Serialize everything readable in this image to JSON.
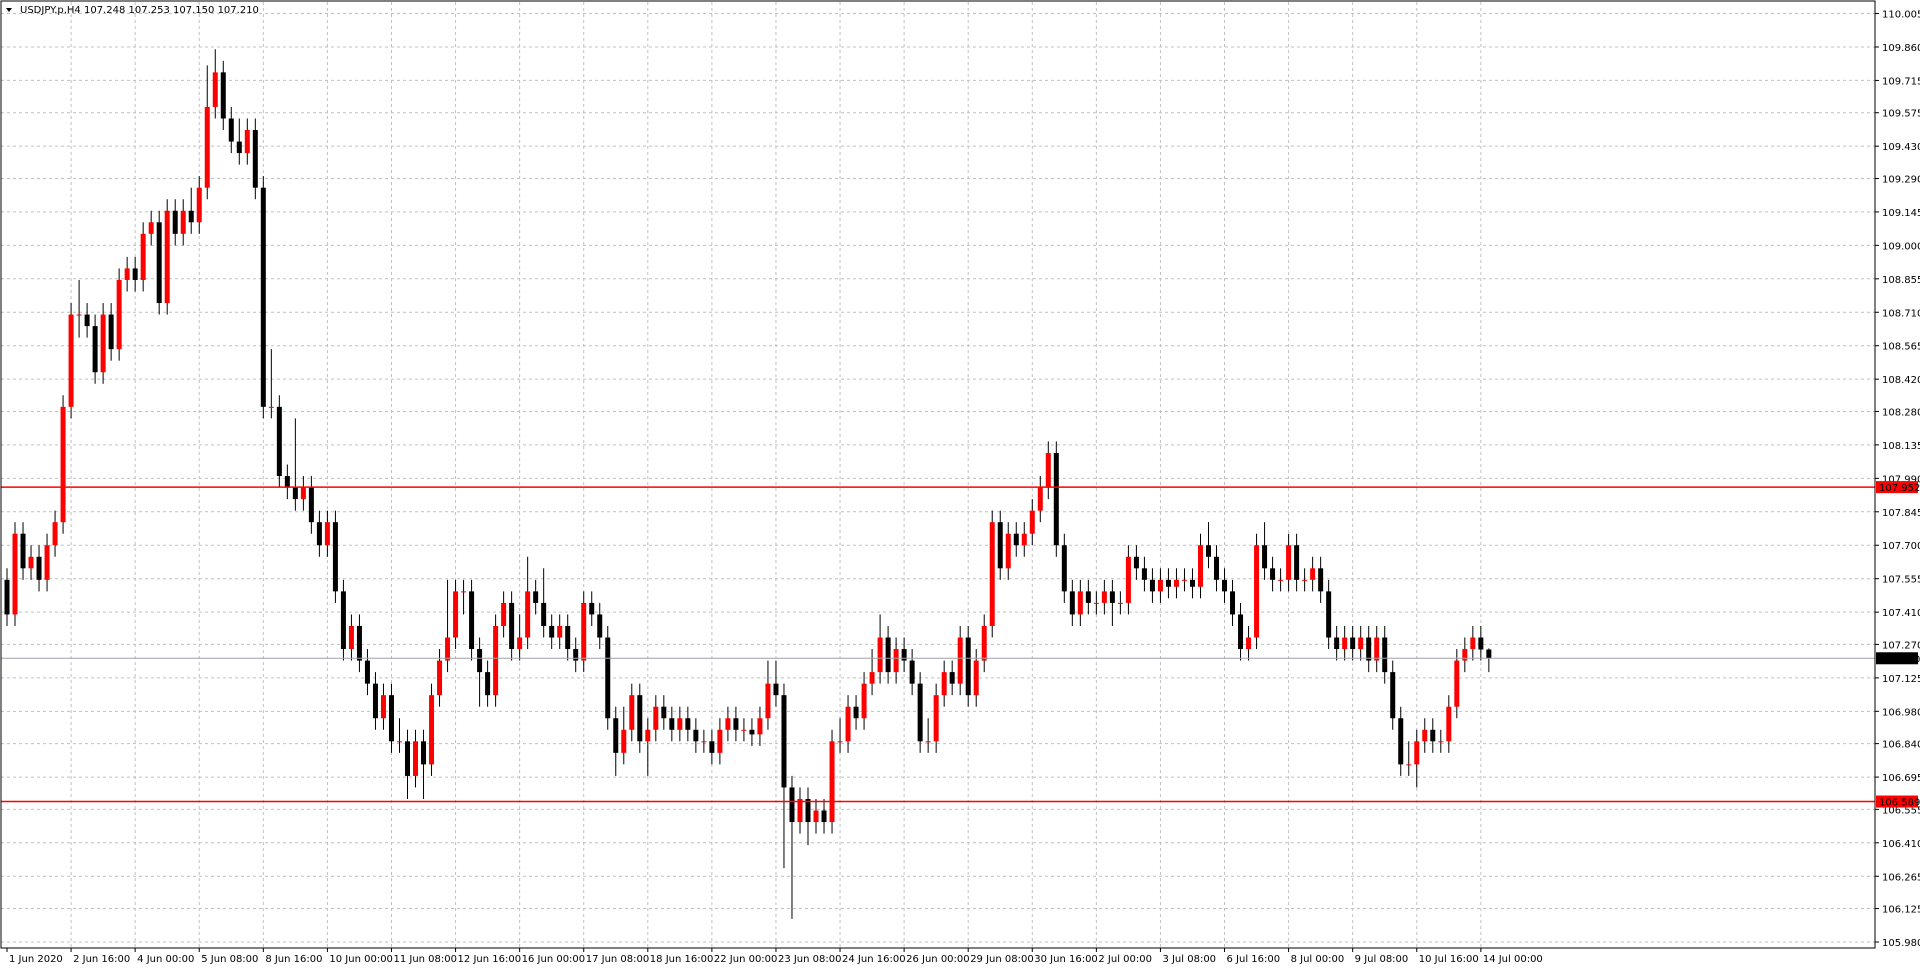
{
  "chart_data": {
    "type": "candlestick",
    "header": "USDJPY.p,H4  107.248 107.253 107.150 107.210",
    "categories": [
      "1 Jun 2020",
      null,
      null,
      null,
      null,
      null,
      null,
      null,
      "2 Jun 16:00",
      null,
      null,
      null,
      null,
      null,
      null,
      null,
      "4 Jun 00:00",
      null,
      null,
      null,
      null,
      null,
      null,
      null,
      "5 Jun 08:00",
      null,
      null,
      null,
      null,
      null,
      null,
      null,
      "8 Jun 16:00",
      null,
      null,
      null,
      null,
      null,
      null,
      null,
      "10 Jun 00:00",
      null,
      null,
      null,
      null,
      null,
      null,
      null,
      "11 Jun 08:00",
      null,
      null,
      null,
      null,
      null,
      null,
      null,
      "12 Jun 16:00",
      null,
      null,
      null,
      null,
      null,
      null,
      null,
      "16 Jun 00:00",
      null,
      null,
      null,
      null,
      null,
      null,
      null,
      "17 Jun 08:00",
      null,
      null,
      null,
      null,
      null,
      null,
      null,
      "18 Jun 16:00",
      null,
      null,
      null,
      null,
      null,
      null,
      null,
      "22 Jun 00:00",
      null,
      null,
      null,
      null,
      null,
      null,
      null,
      "23 Jun 08:00",
      null,
      null,
      null,
      null,
      null,
      null,
      null,
      "24 Jun 16:00",
      null,
      null,
      null,
      null,
      null,
      null,
      null,
      "26 Jun 00:00",
      null,
      null,
      null,
      null,
      null,
      null,
      null,
      "29 Jun 08:00",
      null,
      null,
      null,
      null,
      null,
      null,
      null,
      "30 Jun 16:00",
      null,
      null,
      null,
      null,
      null,
      null,
      null,
      "2 Jul 00:00",
      null,
      null,
      null,
      null,
      null,
      null,
      null,
      "3 Jul 08:00",
      null,
      null,
      null,
      null,
      null,
      null,
      null,
      "6 Jul 16:00",
      null,
      null,
      null,
      null,
      null,
      null,
      null,
      "8 Jul 00:00",
      null,
      null,
      null,
      null,
      null,
      null,
      null,
      "9 Jul 08:00",
      null,
      null,
      null,
      null,
      null,
      null,
      null,
      "10 Jul 16:00",
      null,
      null,
      null,
      null,
      null,
      null,
      null,
      "14 Jul 00:00",
      null
    ],
    "open": [
      107.55,
      107.4,
      107.75,
      107.6,
      107.65,
      107.55,
      107.7,
      107.8,
      108.3,
      108.7,
      108.7,
      108.65,
      108.45,
      108.7,
      108.55,
      108.85,
      108.9,
      108.85,
      109.05,
      109.1,
      108.75,
      109.15,
      109.05,
      109.15,
      109.1,
      109.25,
      109.6,
      109.75,
      109.55,
      109.45,
      109.4,
      109.5,
      109.25,
      108.3,
      108.3,
      108.0,
      107.95,
      107.9,
      107.95,
      107.8,
      107.7,
      107.8,
      107.5,
      107.25,
      107.35,
      107.2,
      107.1,
      106.95,
      107.05,
      106.85,
      106.85,
      106.7,
      106.85,
      106.75,
      107.05,
      107.2,
      107.3,
      107.5,
      107.5,
      107.25,
      107.15,
      107.05,
      107.35,
      107.45,
      107.25,
      107.3,
      107.5,
      107.45,
      107.35,
      107.3,
      107.35,
      107.25,
      107.2,
      107.45,
      107.4,
      107.3,
      106.95,
      106.8,
      106.9,
      107.05,
      106.85,
      106.9,
      107.0,
      106.95,
      106.9,
      106.95,
      106.9,
      106.85,
      106.85,
      106.8,
      106.9,
      106.95,
      106.9,
      106.9,
      106.88,
      106.95,
      107.1,
      107.05,
      106.65,
      106.5,
      106.6,
      106.5,
      106.55,
      106.5,
      106.85,
      106.85,
      107.0,
      106.95,
      107.1,
      107.15,
      107.3,
      107.15,
      107.25,
      107.2,
      107.1,
      106.85,
      106.85,
      107.05,
      107.15,
      107.1,
      107.3,
      107.05,
      107.2,
      107.35,
      107.8,
      107.6,
      107.75,
      107.7,
      107.75,
      107.85,
      107.95,
      108.1,
      107.7,
      107.5,
      107.4,
      107.5,
      107.45,
      107.45,
      107.5,
      107.45,
      107.45,
      107.65,
      107.6,
      107.55,
      107.5,
      107.55,
      107.52,
      107.55,
      107.55,
      107.52,
      107.7,
      107.65,
      107.55,
      107.5,
      107.4,
      107.25,
      107.3,
      107.7,
      107.6,
      107.55,
      107.55,
      107.7,
      107.55,
      107.55,
      107.6,
      107.5,
      107.3,
      107.25,
      107.3,
      107.25,
      107.3,
      107.2,
      107.3,
      107.15,
      106.95,
      106.75,
      106.75,
      106.85,
      106.9,
      106.85,
      106.85,
      107.0,
      107.2,
      107.25,
      107.3,
      107.248
    ],
    "high": [
      107.6,
      107.8,
      107.8,
      107.7,
      107.7,
      107.75,
      107.85,
      108.35,
      108.75,
      108.85,
      108.75,
      108.7,
      108.75,
      108.75,
      108.9,
      108.95,
      108.95,
      109.1,
      109.15,
      109.15,
      109.2,
      109.2,
      109.2,
      109.25,
      109.3,
      109.78,
      109.85,
      109.8,
      109.6,
      109.55,
      109.55,
      109.55,
      109.3,
      108.55,
      108.35,
      108.05,
      108.25,
      108.0,
      108.0,
      107.85,
      107.85,
      107.85,
      107.55,
      107.4,
      107.4,
      107.25,
      107.15,
      107.1,
      107.1,
      106.95,
      106.9,
      106.9,
      106.9,
      107.1,
      107.25,
      107.55,
      107.55,
      107.55,
      107.55,
      107.3,
      107.2,
      107.4,
      107.5,
      107.5,
      107.4,
      107.65,
      107.55,
      107.6,
      107.4,
      107.4,
      107.4,
      107.3,
      107.5,
      107.5,
      107.45,
      107.35,
      107.0,
      107.0,
      107.1,
      107.1,
      106.95,
      107.05,
      107.05,
      107.0,
      107.0,
      107.0,
      106.95,
      106.9,
      106.9,
      106.95,
      107.0,
      107.0,
      106.95,
      106.95,
      107.0,
      107.2,
      107.2,
      107.1,
      106.7,
      106.65,
      106.65,
      106.6,
      106.6,
      106.9,
      106.95,
      107.05,
      107.05,
      107.15,
      107.25,
      107.4,
      107.35,
      107.3,
      107.3,
      107.25,
      107.15,
      106.95,
      107.1,
      107.2,
      107.2,
      107.35,
      107.35,
      107.25,
      107.4,
      107.85,
      107.85,
      107.8,
      107.8,
      107.8,
      107.9,
      108.0,
      108.15,
      108.15,
      107.75,
      107.55,
      107.55,
      107.55,
      107.5,
      107.55,
      107.55,
      107.5,
      107.7,
      107.7,
      107.65,
      107.6,
      107.6,
      107.6,
      107.6,
      107.6,
      107.6,
      107.75,
      107.8,
      107.7,
      107.6,
      107.55,
      107.45,
      107.35,
      107.75,
      107.8,
      107.65,
      107.6,
      107.75,
      107.75,
      107.6,
      107.65,
      107.65,
      107.55,
      107.35,
      107.35,
      107.35,
      107.35,
      107.35,
      107.35,
      107.35,
      107.2,
      107.0,
      106.85,
      106.9,
      106.95,
      106.95,
      106.9,
      107.05,
      107.25,
      107.3,
      107.35,
      107.35,
      107.253
    ],
    "low": [
      107.35,
      107.35,
      107.55,
      107.55,
      107.5,
      107.5,
      107.65,
      107.75,
      108.25,
      108.6,
      108.6,
      108.4,
      108.4,
      108.5,
      108.5,
      108.8,
      108.8,
      108.8,
      109.0,
      108.7,
      108.7,
      109.0,
      109.0,
      109.05,
      109.05,
      109.2,
      109.55,
      109.5,
      109.4,
      109.35,
      109.35,
      109.2,
      108.25,
      108.25,
      107.95,
      107.9,
      107.85,
      107.85,
      107.75,
      107.65,
      107.65,
      107.45,
      107.2,
      107.2,
      107.15,
      107.05,
      106.9,
      106.9,
      106.8,
      106.8,
      106.6,
      106.65,
      106.6,
      106.7,
      107.0,
      107.15,
      107.25,
      107.4,
      107.2,
      107.0,
      107.0,
      107.0,
      107.3,
      107.2,
      107.2,
      107.25,
      107.4,
      107.3,
      107.25,
      107.25,
      107.2,
      107.15,
      107.15,
      107.35,
      107.25,
      106.9,
      106.7,
      106.75,
      106.85,
      106.8,
      106.7,
      106.85,
      106.9,
      106.85,
      106.85,
      106.85,
      106.8,
      106.8,
      106.75,
      106.75,
      106.85,
      106.85,
      106.85,
      106.83,
      106.83,
      106.9,
      107.0,
      106.3,
      106.08,
      106.45,
      106.4,
      106.45,
      106.45,
      106.45,
      106.8,
      106.8,
      106.9,
      106.9,
      107.05,
      107.1,
      107.1,
      107.1,
      107.15,
      107.05,
      106.8,
      106.8,
      106.8,
      107.0,
      107.05,
      107.05,
      107.0,
      107.0,
      107.15,
      107.3,
      107.55,
      107.55,
      107.65,
      107.65,
      107.7,
      107.8,
      107.9,
      107.65,
      107.45,
      107.35,
      107.35,
      107.4,
      107.4,
      107.4,
      107.35,
      107.4,
      107.4,
      107.55,
      107.5,
      107.45,
      107.45,
      107.47,
      107.47,
      107.5,
      107.47,
      107.47,
      107.6,
      107.5,
      107.45,
      107.35,
      107.2,
      107.2,
      107.25,
      107.55,
      107.5,
      107.5,
      107.5,
      107.5,
      107.5,
      107.5,
      107.45,
      107.25,
      107.2,
      107.2,
      107.2,
      107.2,
      107.15,
      107.15,
      107.1,
      106.9,
      106.7,
      106.7,
      106.65,
      106.8,
      106.8,
      106.8,
      106.8,
      106.95,
      107.15,
      107.2,
      107.2,
      107.15
    ],
    "close": [
      107.4,
      107.75,
      107.6,
      107.65,
      107.55,
      107.7,
      107.8,
      108.3,
      108.7,
      108.7,
      108.65,
      108.45,
      108.7,
      108.55,
      108.85,
      108.9,
      108.85,
      109.05,
      109.1,
      108.75,
      109.15,
      109.05,
      109.15,
      109.1,
      109.25,
      109.6,
      109.75,
      109.55,
      109.45,
      109.4,
      109.5,
      109.25,
      108.3,
      108.3,
      108.0,
      107.95,
      107.9,
      107.95,
      107.8,
      107.7,
      107.8,
      107.5,
      107.25,
      107.35,
      107.2,
      107.1,
      106.95,
      107.05,
      106.85,
      106.85,
      106.7,
      106.85,
      106.75,
      107.05,
      107.2,
      107.3,
      107.5,
      107.5,
      107.25,
      107.15,
      107.05,
      107.35,
      107.45,
      107.25,
      107.3,
      107.5,
      107.45,
      107.35,
      107.3,
      107.35,
      107.25,
      107.2,
      107.45,
      107.4,
      107.3,
      106.95,
      106.8,
      106.9,
      107.05,
      106.85,
      106.9,
      107.0,
      106.95,
      106.9,
      106.95,
      106.9,
      106.85,
      106.85,
      106.8,
      106.9,
      106.95,
      106.9,
      106.9,
      106.88,
      106.95,
      107.1,
      107.05,
      106.65,
      106.5,
      106.6,
      106.5,
      106.55,
      106.5,
      106.85,
      106.85,
      107.0,
      106.95,
      107.1,
      107.15,
      107.3,
      107.15,
      107.25,
      107.2,
      107.1,
      106.85,
      106.85,
      107.05,
      107.15,
      107.1,
      107.3,
      107.05,
      107.2,
      107.35,
      107.8,
      107.6,
      107.75,
      107.7,
      107.75,
      107.85,
      107.95,
      108.1,
      107.7,
      107.5,
      107.4,
      107.5,
      107.45,
      107.45,
      107.5,
      107.45,
      107.45,
      107.65,
      107.6,
      107.55,
      107.5,
      107.55,
      107.52,
      107.55,
      107.55,
      107.52,
      107.7,
      107.65,
      107.55,
      107.5,
      107.4,
      107.25,
      107.3,
      107.7,
      107.6,
      107.55,
      107.55,
      107.7,
      107.55,
      107.55,
      107.6,
      107.5,
      107.3,
      107.25,
      107.3,
      107.25,
      107.3,
      107.2,
      107.3,
      107.15,
      106.95,
      106.75,
      106.75,
      106.85,
      106.9,
      106.85,
      106.85,
      107.0,
      107.2,
      107.25,
      107.3,
      107.248,
      107.21
    ],
    "up_color": "#ff0000",
    "down_color": "#000000",
    "ylim": [
      105.954,
      110.055
    ],
    "yticks": [
      110.005,
      {
        "value": 109.86,
        "label": "109.860"
      },
      109.715,
      109.575,
      {
        "value": 109.43,
        "label": "109.430"
      },
      {
        "value": 109.29,
        "label": "109.290"
      },
      109.145,
      {
        "value": 109.0,
        "label": "109.000"
      },
      108.855,
      {
        "value": 108.71,
        "label": "108.710"
      },
      108.565,
      {
        "value": 108.42,
        "label": "108.420"
      },
      {
        "value": 108.28,
        "label": "108.280"
      },
      108.135,
      {
        "value": 107.99,
        "label": "107.990"
      },
      107.845,
      {
        "value": 107.7,
        "label": "107.700"
      },
      107.555,
      {
        "value": 107.41,
        "label": "107.410"
      },
      {
        "value": 107.27,
        "label": "107.270"
      },
      107.125,
      {
        "value": 106.98,
        "label": "106.980"
      },
      {
        "value": 106.84,
        "label": "106.840"
      },
      106.695,
      106.555,
      {
        "value": 106.41,
        "label": "106.410"
      },
      106.265,
      106.125,
      {
        "value": 105.98,
        "label": "105.980"
      }
    ],
    "grid": true,
    "hlines": [
      {
        "value": 107.952,
        "color": "#ff0000"
      },
      {
        "value": 106.589,
        "color": "#ff0000"
      }
    ],
    "price_line": {
      "value": 107.21,
      "label": "107.210",
      "color": "#a0a0a8"
    }
  }
}
